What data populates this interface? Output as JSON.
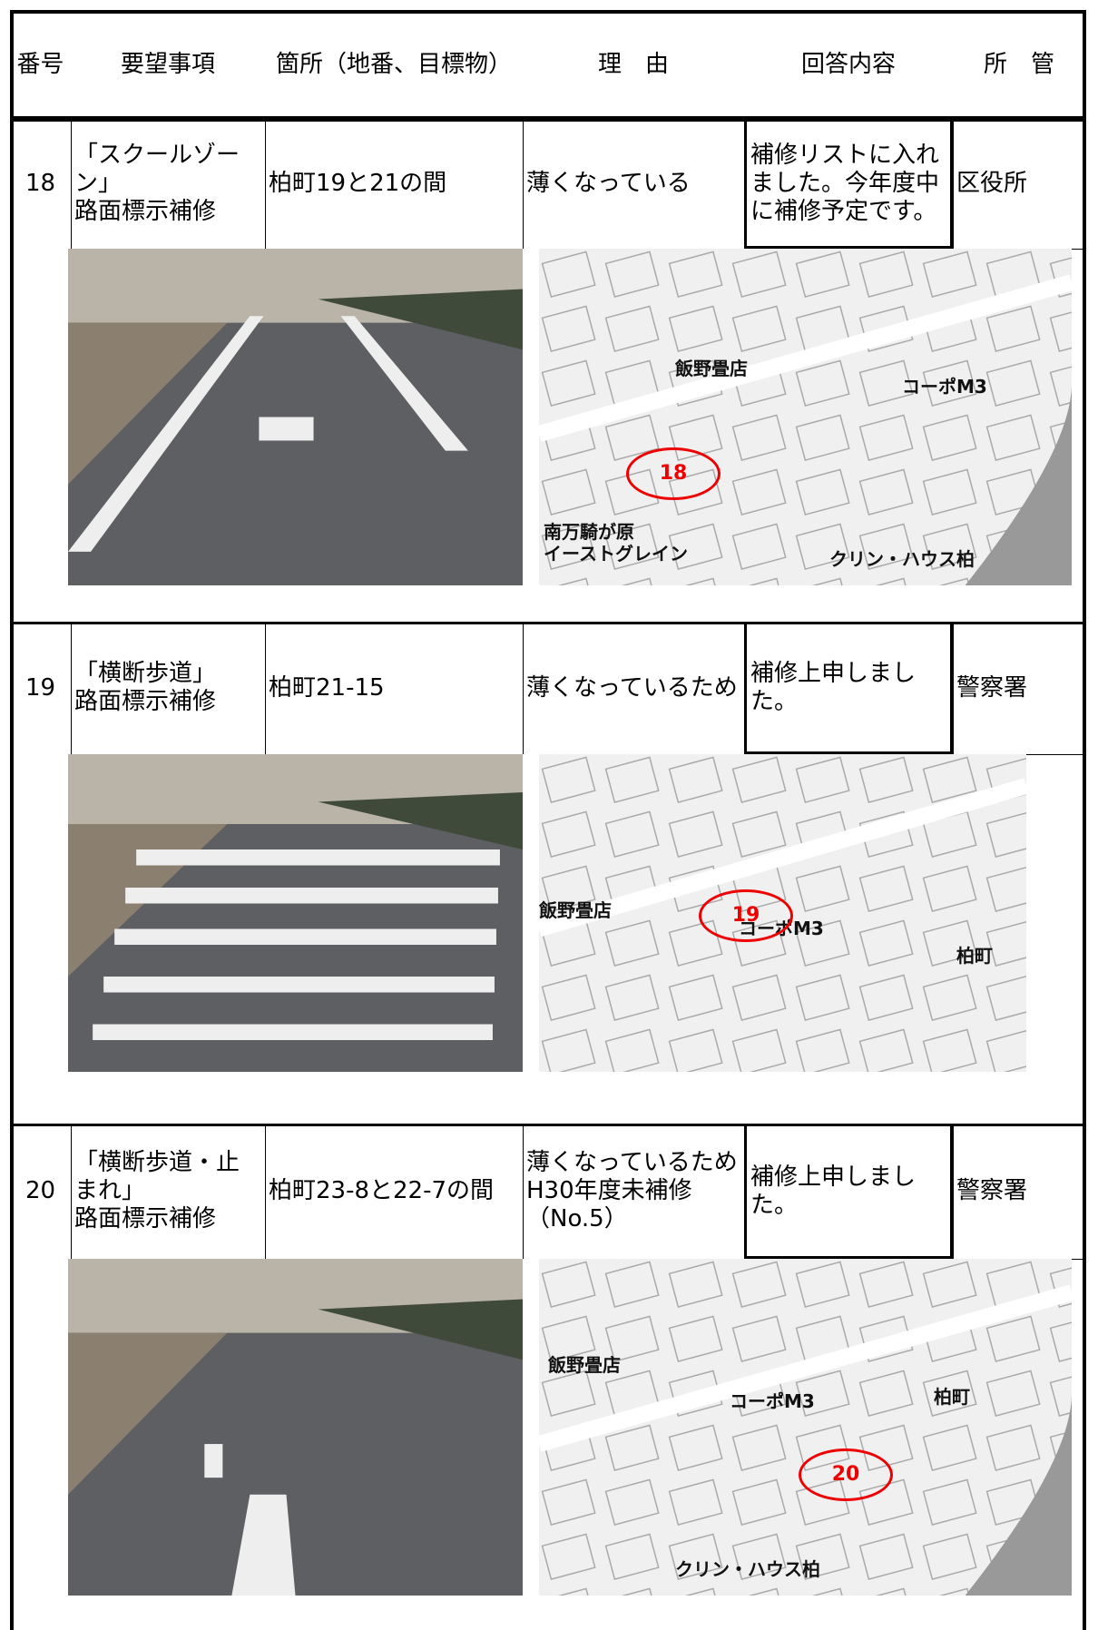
{
  "table": {
    "header": [
      "番号",
      "要望事項",
      "箇所（地番、目標物）",
      "理　由",
      "回答内容",
      "所　管"
    ],
    "rows": [
      {
        "cells": [
          "18",
          "「スクールゾーン」\n路面標示補修",
          "柏町19と21の間",
          "薄くなっている",
          "補修リストに入れました。今年度中に補修予定です。",
          "区役所"
        ],
        "map_labels": [
          "飯野畳店",
          "コーポM3",
          "南万騎が原\nイーストグレイン",
          "クリン・ハウス柏",
          "18"
        ]
      },
      {
        "cells": [
          "19",
          "「横断歩道」\n路面標示補修",
          "柏町21-15",
          "薄くなっているため",
          "補修上申しました。",
          "警察署"
        ],
        "map_labels": [
          "飯野畳店",
          "コーポM3",
          "柏町",
          "19"
        ]
      },
      {
        "cells": [
          "20",
          "「横断歩道・止まれ」\n路面標示補修",
          "柏町23-8と22-7の間",
          "薄くなっているため\nH30年度未補修\n（No.5）",
          "補修上申しました。",
          "警察署"
        ],
        "map_labels": [
          "飯野畳店",
          "コーポM3",
          "柏町",
          "クリン・ハウス柏",
          "20"
        ]
      }
    ]
  }
}
